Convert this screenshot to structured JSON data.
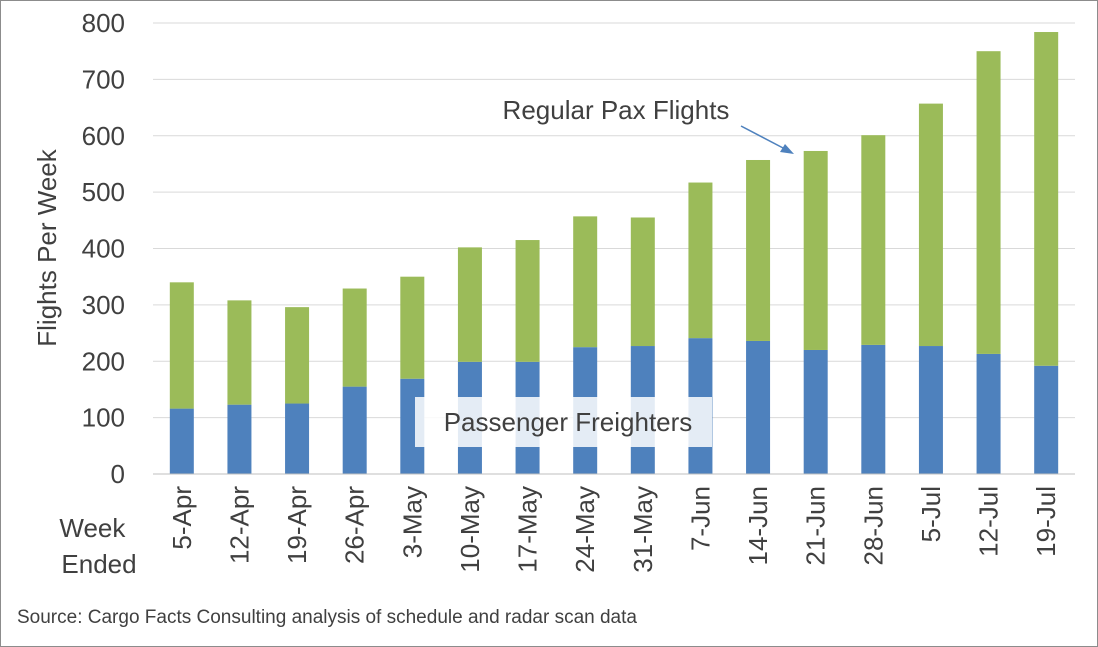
{
  "chart_data": {
    "type": "bar",
    "stacked": true,
    "categories": [
      "5-Apr",
      "12-Apr",
      "19-Apr",
      "26-Apr",
      "3-May",
      "10-May",
      "17-May",
      "24-May",
      "31-May",
      "7-Jun",
      "14-Jun",
      "21-Jun",
      "28-Jun",
      "5-Jul",
      "12-Jul",
      "19-Jul"
    ],
    "series": [
      {
        "name": "Passenger Freighters",
        "color": "#4e81bd",
        "values": [
          116,
          123,
          125,
          155,
          169,
          199,
          199,
          225,
          227,
          241,
          236,
          220,
          229,
          227,
          213,
          192
        ]
      },
      {
        "name": "Regular Pax Flights",
        "color": "#9bbb59",
        "values": [
          224,
          185,
          171,
          174,
          181,
          203,
          216,
          232,
          228,
          276,
          321,
          353,
          372,
          430,
          537,
          592
        ]
      }
    ],
    "ylabel": "Flights Per Week",
    "xlabel": "Week Ended",
    "ylim": [
      0,
      800
    ],
    "yticks": [
      0,
      100,
      200,
      300,
      400,
      500,
      600,
      700,
      800
    ],
    "grid": true,
    "source": "Source: Cargo Facts Consulting analysis of schedule and radar scan data"
  }
}
